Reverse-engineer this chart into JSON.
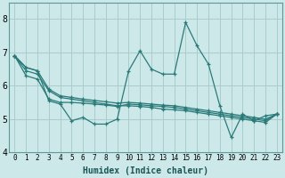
{
  "xlabel": "Humidex (Indice chaleur)",
  "bg_color": "#cce8e8",
  "grid_color": "#aacccc",
  "line_color": "#2a7a7a",
  "xlim": [
    -0.5,
    23.5
  ],
  "ylim": [
    4.0,
    8.5
  ],
  "yticks": [
    4,
    5,
    6,
    7,
    8
  ],
  "xticks": [
    0,
    1,
    2,
    3,
    4,
    5,
    6,
    7,
    8,
    9,
    10,
    11,
    12,
    13,
    14,
    15,
    16,
    17,
    18,
    19,
    20,
    21,
    22,
    23
  ],
  "series": [
    [
      6.9,
      6.55,
      6.45,
      5.55,
      5.45,
      4.95,
      5.05,
      4.85,
      4.85,
      5.0,
      6.45,
      7.05,
      6.5,
      6.35,
      6.35,
      7.9,
      7.2,
      6.65,
      5.4,
      4.45,
      5.15,
      4.95,
      5.1,
      5.15
    ],
    [
      6.9,
      6.45,
      6.35,
      5.85,
      5.65,
      5.6,
      5.55,
      5.5,
      5.45,
      5.4,
      5.4,
      5.38,
      5.35,
      5.3,
      5.28,
      5.25,
      5.2,
      5.15,
      5.1,
      5.05,
      5.0,
      4.95,
      4.9,
      5.15
    ],
    [
      6.9,
      6.3,
      6.2,
      5.6,
      5.5,
      5.5,
      5.48,
      5.45,
      5.42,
      5.38,
      5.45,
      5.43,
      5.4,
      5.38,
      5.35,
      5.3,
      5.25,
      5.2,
      5.15,
      5.1,
      5.05,
      5.0,
      4.95,
      5.15
    ],
    [
      6.9,
      6.55,
      6.45,
      5.9,
      5.7,
      5.65,
      5.6,
      5.56,
      5.52,
      5.48,
      5.5,
      5.48,
      5.45,
      5.42,
      5.4,
      5.35,
      5.3,
      5.25,
      5.2,
      5.15,
      5.1,
      5.05,
      5.0,
      5.15
    ]
  ]
}
